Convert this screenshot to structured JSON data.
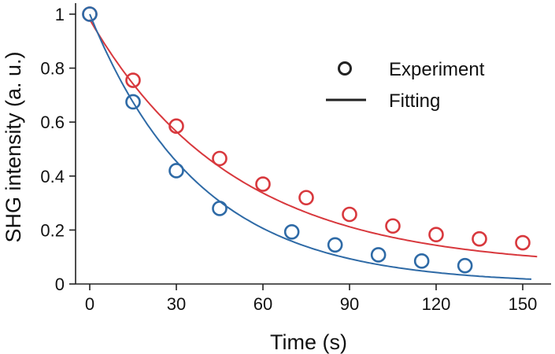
{
  "chart_data": {
    "type": "scatter",
    "title": "",
    "xlabel": "Time (s)",
    "ylabel": "SHG intensity (a. u.)",
    "xlim": [
      -5,
      155
    ],
    "ylim": [
      0,
      1.04
    ],
    "xticks": [
      0,
      30,
      60,
      90,
      120,
      150
    ],
    "xtick_labels": [
      "0",
      "30",
      "60",
      "90",
      "120",
      "150"
    ],
    "yticks": [
      0,
      0.2,
      0.4,
      0.6,
      0.8,
      1
    ],
    "ytick_labels": [
      "0",
      "0.2",
      "0.4",
      "0.6",
      "0.8",
      "1"
    ],
    "grid": false,
    "legend": {
      "position": "top-right",
      "entries": [
        {
          "label": "Experiment",
          "marker": "circle"
        },
        {
          "label": "Fitting",
          "marker": "line"
        }
      ]
    },
    "series": [
      {
        "name": "red-experiment",
        "color": "#d8383d",
        "x": [
          0,
          15,
          30,
          45,
          60,
          75,
          90,
          105,
          120,
          135,
          150
        ],
        "y": [
          1.0,
          0.755,
          0.585,
          0.465,
          0.37,
          0.32,
          0.258,
          0.215,
          0.183,
          0.167,
          0.153
        ]
      },
      {
        "name": "blue-experiment",
        "color": "#2e6aa6",
        "x": [
          0,
          15,
          30,
          45,
          70,
          85,
          100,
          115,
          130
        ],
        "y": [
          1.0,
          0.675,
          0.42,
          0.28,
          0.193,
          0.145,
          0.108,
          0.085,
          0.068
        ]
      }
    ],
    "fits": [
      {
        "name": "red-fit",
        "color": "#d8383d",
        "model": "a*exp(-t/tau)+c",
        "a": 0.92,
        "tau": 50,
        "c": 0.06,
        "x_range": [
          0,
          155
        ]
      },
      {
        "name": "blue-fit",
        "color": "#2e6aa6",
        "model": "a*exp(-t/tau)",
        "a": 1.0,
        "tau": 38,
        "c": 0,
        "x_range": [
          0,
          153
        ]
      }
    ]
  }
}
